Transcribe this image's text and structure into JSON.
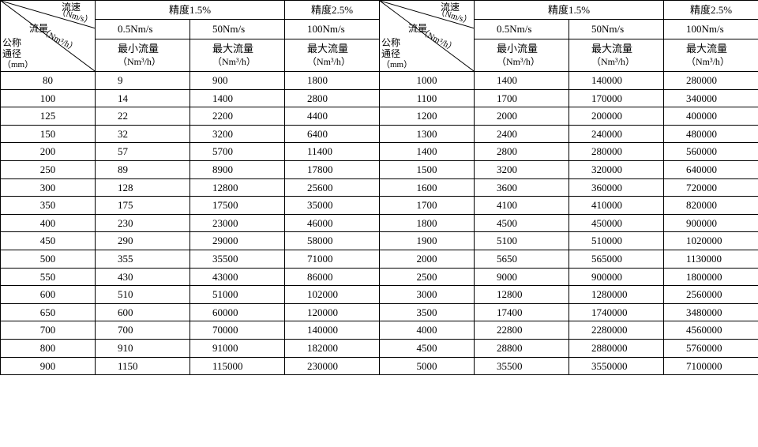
{
  "colors": {
    "border": "#000000",
    "background": "#ffffff",
    "text": "#000000"
  },
  "font": {
    "family": "SimSun",
    "size_pt": 10,
    "header_size_pt": 10
  },
  "corner": {
    "top": "流速",
    "top_unit": "（Nm/s）",
    "mid": "流量",
    "mid_unit": "（Nm³/h）",
    "bot": "公称通径",
    "bot_unit": "（mm）"
  },
  "header": {
    "grp1": "精度1.5%",
    "grp2": "精度2.5%",
    "speed1": "0.5Nm/s",
    "speed2": "50Nm/s",
    "speed3": "100Nm/s",
    "min_flow": "最小流量",
    "max_flow": "最大流量",
    "unit": "（Nm³/h）"
  },
  "rowsL": [
    {
      "dn": "80",
      "a": "9",
      "b": "900",
      "c": "1800"
    },
    {
      "dn": "100",
      "a": "14",
      "b": "1400",
      "c": "2800"
    },
    {
      "dn": "125",
      "a": "22",
      "b": "2200",
      "c": "4400"
    },
    {
      "dn": "150",
      "a": "32",
      "b": "3200",
      "c": "6400"
    },
    {
      "dn": "200",
      "a": "57",
      "b": "5700",
      "c": "11400"
    },
    {
      "dn": "250",
      "a": "89",
      "b": "8900",
      "c": "17800"
    },
    {
      "dn": "300",
      "a": "128",
      "b": "12800",
      "c": "25600"
    },
    {
      "dn": "350",
      "a": "175",
      "b": "17500",
      "c": "35000"
    },
    {
      "dn": "400",
      "a": "230",
      "b": "23000",
      "c": "46000"
    },
    {
      "dn": "450",
      "a": "290",
      "b": "29000",
      "c": "58000"
    },
    {
      "dn": "500",
      "a": "355",
      "b": "35500",
      "c": "71000"
    },
    {
      "dn": "550",
      "a": "430",
      "b": "43000",
      "c": "86000"
    },
    {
      "dn": "600",
      "a": "510",
      "b": "51000",
      "c": "102000"
    },
    {
      "dn": "650",
      "a": "600",
      "b": "60000",
      "c": "120000"
    },
    {
      "dn": "700",
      "a": "700",
      "b": "70000",
      "c": "140000"
    },
    {
      "dn": "800",
      "a": "910",
      "b": "91000",
      "c": "182000"
    },
    {
      "dn": "900",
      "a": "1150",
      "b": "115000",
      "c": "230000"
    }
  ],
  "rowsR": [
    {
      "dn": "1000",
      "a": "1400",
      "b": "140000",
      "c": "280000"
    },
    {
      "dn": "1100",
      "a": "1700",
      "b": "170000",
      "c": "340000"
    },
    {
      "dn": "1200",
      "a": "2000",
      "b": "200000",
      "c": "400000"
    },
    {
      "dn": "1300",
      "a": "2400",
      "b": "240000",
      "c": "480000"
    },
    {
      "dn": "1400",
      "a": "2800",
      "b": "280000",
      "c": "560000"
    },
    {
      "dn": "1500",
      "a": "3200",
      "b": "320000",
      "c": "640000"
    },
    {
      "dn": "1600",
      "a": "3600",
      "b": "360000",
      "c": "720000"
    },
    {
      "dn": "1700",
      "a": "4100",
      "b": "410000",
      "c": "820000"
    },
    {
      "dn": "1800",
      "a": "4500",
      "b": "450000",
      "c": "900000"
    },
    {
      "dn": "1900",
      "a": "5100",
      "b": "510000",
      "c": "1020000"
    },
    {
      "dn": "2000",
      "a": "5650",
      "b": "565000",
      "c": "1130000"
    },
    {
      "dn": "2500",
      "a": "9000",
      "b": "900000",
      "c": "1800000"
    },
    {
      "dn": "3000",
      "a": "12800",
      "b": "1280000",
      "c": "2560000"
    },
    {
      "dn": "3500",
      "a": "17400",
      "b": "1740000",
      "c": "3480000"
    },
    {
      "dn": "4000",
      "a": "22800",
      "b": "2280000",
      "c": "4560000"
    },
    {
      "dn": "4500",
      "a": "28800",
      "b": "2880000",
      "c": "5760000"
    },
    {
      "dn": "5000",
      "a": "35500",
      "b": "3550000",
      "c": "7100000"
    }
  ]
}
